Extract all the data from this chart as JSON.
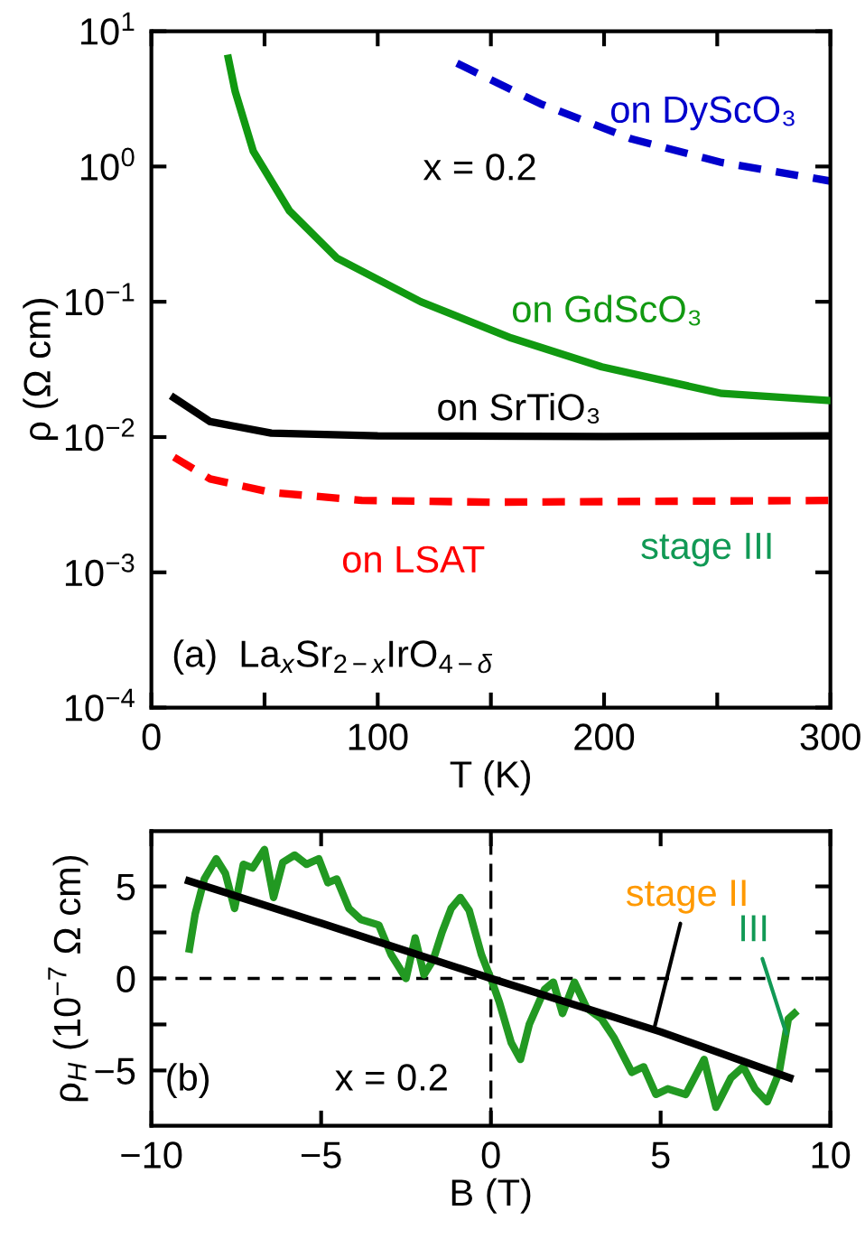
{
  "chart_data": [
    {
      "type": "line",
      "xlabel": "T (K)",
      "ylabel": "ρ (Ω cm)",
      "log": "y",
      "grid": false,
      "legend": false,
      "xlim": [
        0,
        300
      ],
      "xticks": [
        0,
        {
          "value": 50,
          "label": null
        },
        100,
        {
          "value": 150,
          "label": null
        },
        200,
        {
          "value": 250,
          "label": null
        },
        300
      ],
      "ylim": [
        0.0001,
        10
      ],
      "yticks": [
        {
          "value": 0.0001,
          "label": "10$^{−4}$"
        },
        {
          "value": 0.001,
          "label": "10$^{−3}$"
        },
        {
          "value": 0.01,
          "label": "10$^{−2}$"
        },
        {
          "value": 0.1,
          "label": "10$^{−1}$"
        },
        {
          "value": 1,
          "label": "10$^{0}$"
        },
        {
          "value": 10,
          "label": "10$^{1}$"
        }
      ],
      "series": [
        {
          "name": "on DyScO₃",
          "color": "#0000cc",
          "line_style": "dashed",
          "x": [
            135,
            172,
            212,
            252,
            300
          ],
          "values": [
            5.8,
            2.9,
            1.6,
            1.07,
            0.78
          ]
        },
        {
          "name": "on GdScO₃",
          "color": "#119911",
          "line_style": "solid",
          "x": [
            34,
            37,
            45,
            61,
            82,
            119,
            159,
            199,
            252,
            300
          ],
          "values": [
            6.3,
            3.6,
            1.3,
            0.47,
            0.21,
            0.1,
            0.054,
            0.033,
            0.021,
            0.0186
          ]
        },
        {
          "name": "on SrTiO₃",
          "color": "#000000",
          "line_style": "solid",
          "x": [
            10,
            26,
            53,
            100,
            200,
            300
          ],
          "values": [
            0.0195,
            0.013,
            0.0107,
            0.0102,
            0.0101,
            0.0102
          ]
        },
        {
          "name": "on LSAT",
          "color": "#ff0000",
          "line_style": "dashed",
          "x": [
            10,
            26,
            53,
            93,
            150,
            300
          ],
          "values": [
            0.0071,
            0.0049,
            0.0039,
            0.0034,
            0.0033,
            0.0034
          ]
        }
      ],
      "annotations": [
        "x = 0.2",
        "stage III",
        "(a)  La$_{x}$Sr$_{2−x}$IrO$_{4−δ}$"
      ]
    },
    {
      "type": "line",
      "xlabel": "B (T)",
      "ylabel": "ρ$_{H}$ (10$^{−7}$ Ω cm)",
      "grid": false,
      "legend": false,
      "xlim": [
        -10,
        10
      ],
      "xticks": [
        -10,
        -5,
        0,
        5,
        10
      ],
      "ylim": [
        -8,
        8
      ],
      "yticks": [
        -5,
        {
          "value": -2.5,
          "label": null
        },
        0,
        {
          "value": 2.5,
          "label": null
        },
        5
      ],
      "ref_lines": [
        {
          "axis": "x",
          "value": 0,
          "color": "#000000",
          "line_style": "dashed"
        },
        {
          "axis": "y",
          "value": 0,
          "color": "#000000",
          "line_style": "dashed"
        }
      ],
      "series": [
        {
          "color": "#229922",
          "line_style": "solid",
          "x": [
            -8.88,
            -8.71,
            -8.44,
            -8.09,
            -7.82,
            -7.55,
            -7.29,
            -7.02,
            -6.67,
            -6.4,
            -6.13,
            -5.78,
            -5.43,
            -5.07,
            -4.8,
            -4.54,
            -4.18,
            -3.83,
            -3.3,
            -2.94,
            -2.5,
            -2.23,
            -1.97,
            -1.7,
            -1.44,
            -1.17,
            -0.9,
            -0.64,
            -0.28,
            0.04,
            0.25,
            0.6,
            0.87,
            1.13,
            1.58,
            1.84,
            2.11,
            2.46,
            2.82,
            3.26,
            3.62,
            4.15,
            4.5,
            4.86,
            5.21,
            5.74,
            6.28,
            6.63,
            7.07,
            7.43,
            7.78,
            8.14,
            8.49,
            8.76,
            8.94
          ],
          "values": [
            1.6,
            3.5,
            5.4,
            6.5,
            5.7,
            3.8,
            6.2,
            6.0,
            7.0,
            4.4,
            6.3,
            6.7,
            6.2,
            6.5,
            5.2,
            5.4,
            3.8,
            3.2,
            2.9,
            1.3,
            0,
            2.2,
            0.2,
            1.0,
            2.5,
            3.8,
            4.4,
            3.7,
            1.3,
            -0.2,
            -1.3,
            -3.5,
            -4.4,
            -2.5,
            -0.6,
            -0.2,
            -1.9,
            -0.2,
            -1.6,
            -2.2,
            -3.2,
            -5.1,
            -4.8,
            -6.3,
            -6.0,
            -6.3,
            -4.4,
            -7.0,
            -5.4,
            -4.8,
            -6.0,
            -6.7,
            -5.1,
            -2.2,
            -1.9
          ]
        },
        {
          "color": "#000000",
          "line_style": "solid",
          "x": [
            -8.9,
            -5,
            0,
            5,
            8.8
          ],
          "values": [
            5.3,
            3.0,
            0,
            -2.9,
            -5.4
          ]
        }
      ],
      "annotations": [
        "(b)",
        "x = 0.2",
        {
          "text": "stage II",
          "x": 4.8,
          "y": -2.8
        },
        {
          "text": "III",
          "x": 8.7,
          "y": -3.0
        }
      ]
    }
  ]
}
